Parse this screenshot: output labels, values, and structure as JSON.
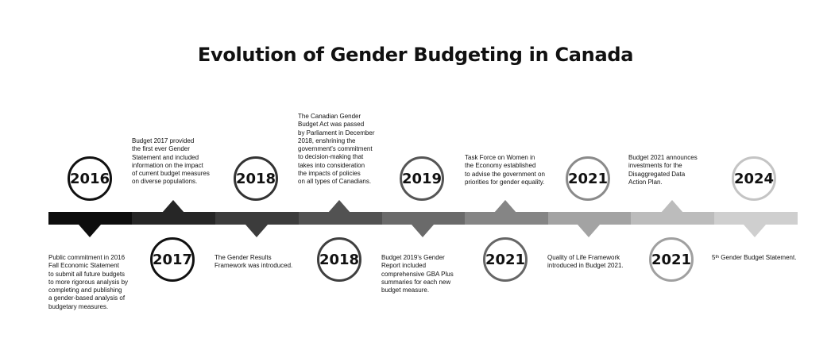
{
  "title": "Evolution of Gender Budgeting in Canada",
  "colors": {
    "seg": [
      "#0d0d0d",
      "#262626",
      "#3c3c3c",
      "#525252",
      "#6a6a6a",
      "#858585",
      "#a3a3a3",
      "#bcbcbc",
      "#cfcfcf"
    ],
    "circle_border": [
      "#111111",
      "#111111",
      "#333333",
      "#3f3f3f",
      "#555555",
      "#666666",
      "#8a8a8a",
      "#a0a0a0",
      "#c4c4c4"
    ]
  },
  "events": [
    {
      "year": "2016",
      "lines": [
        "Public commitment in 2016",
        "Fall Economic Statement",
        "to submit all future budgets",
        "to more rigorous analysis by",
        "completing and publishing",
        "a gender-based analysis of",
        "budgetary measures."
      ]
    },
    {
      "year": "2017",
      "lines": [
        "Budget 2017 provided",
        "the first ever Gender",
        "Statement and included",
        "information on the impact",
        "of current budget measures",
        "on diverse populations."
      ]
    },
    {
      "year": "2018",
      "lines": [
        "The Gender Results",
        "Framework was introduced."
      ]
    },
    {
      "year": "2018",
      "lines": [
        "The Canadian Gender",
        "Budget Act was passed",
        "by Parliament in December",
        "2018, enshrining the",
        "government's commitment",
        "to decision-making that",
        "takes into consideration",
        "the impacts of policies",
        "on all types of Canadians."
      ]
    },
    {
      "year": "2019",
      "lines": [
        "Budget 2019's Gender",
        "Report included",
        "comprehensive GBA Plus",
        "summaries for each new",
        "budget measure."
      ]
    },
    {
      "year": "2021",
      "lines": [
        "Task Force on Women in",
        "the Economy established",
        "to advise the government on",
        "priorities for gender equality."
      ]
    },
    {
      "year": "2021",
      "lines": [
        "Quality of Life Framework",
        "introduced in Budget 2021."
      ]
    },
    {
      "year": "2021",
      "lines": [
        "Budget 2021 announces",
        "investments for the",
        "Disaggregated Data",
        "Action Plan."
      ]
    },
    {
      "year": "2024",
      "sup_prefix": "5",
      "sup": "th",
      "text": " Gender Budget Statement."
    }
  ]
}
